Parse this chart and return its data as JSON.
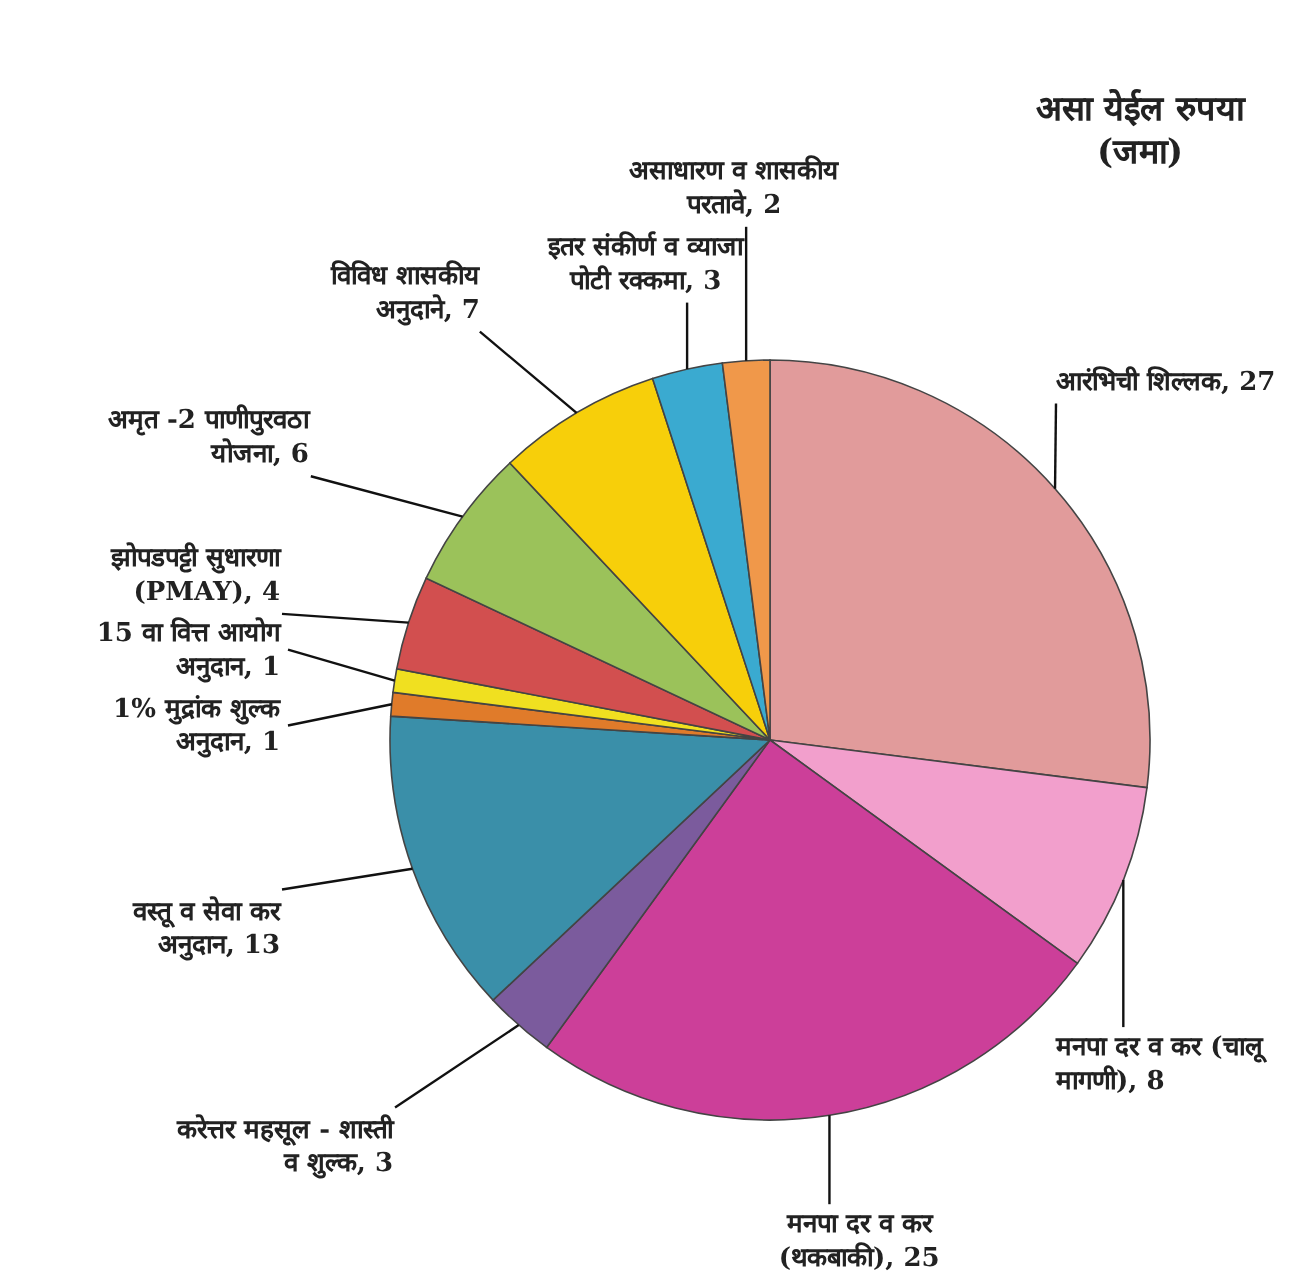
{
  "chart_data": {
    "type": "pie",
    "title": "असा येईल रुपया (जमा)",
    "categories": [
      "आरंभिची शिल्लक",
      "मनपा दर व कर (चालू मागणी)",
      "मनपा दर व कर (थकबाकी)",
      "करेत्तर महसूल - शास्ती व शुल्क",
      "वस्तू व सेवा कर अनुदान",
      "1% मुद्रांक शुल्क अनुदान",
      "15 वा वित्त आयोग अनुदान",
      "झोपडपट्टी सुधारणा (PMAY)",
      "अमृत -2 पाणीपुरवठा योजना",
      "विविध शासकीय अनुदाने",
      "इतर संकीर्ण व व्याजा पोटी रक्कमा",
      "असाधारण व शासकीय परतावे"
    ],
    "values": [
      27,
      8,
      25,
      3,
      13,
      1,
      1,
      4,
      6,
      7,
      3,
      2
    ],
    "colors": [
      "#e19b9b",
      "#f29fcc",
      "#cc3f99",
      "#7b5b9d",
      "#3a8fa9",
      "#e07b2a",
      "#f0e020",
      "#d24f4f",
      "#9bc25a",
      "#f7cf0a",
      "#3aaad0",
      "#f0984a"
    ],
    "value_labels": [
      ", 27",
      ", 8",
      ", 25",
      ", 3",
      ", 13",
      ", 1",
      ", 1",
      ", 4",
      ", 6",
      ", 7",
      ", 3",
      ", 2"
    ],
    "data_labels": true,
    "legend": false
  }
}
